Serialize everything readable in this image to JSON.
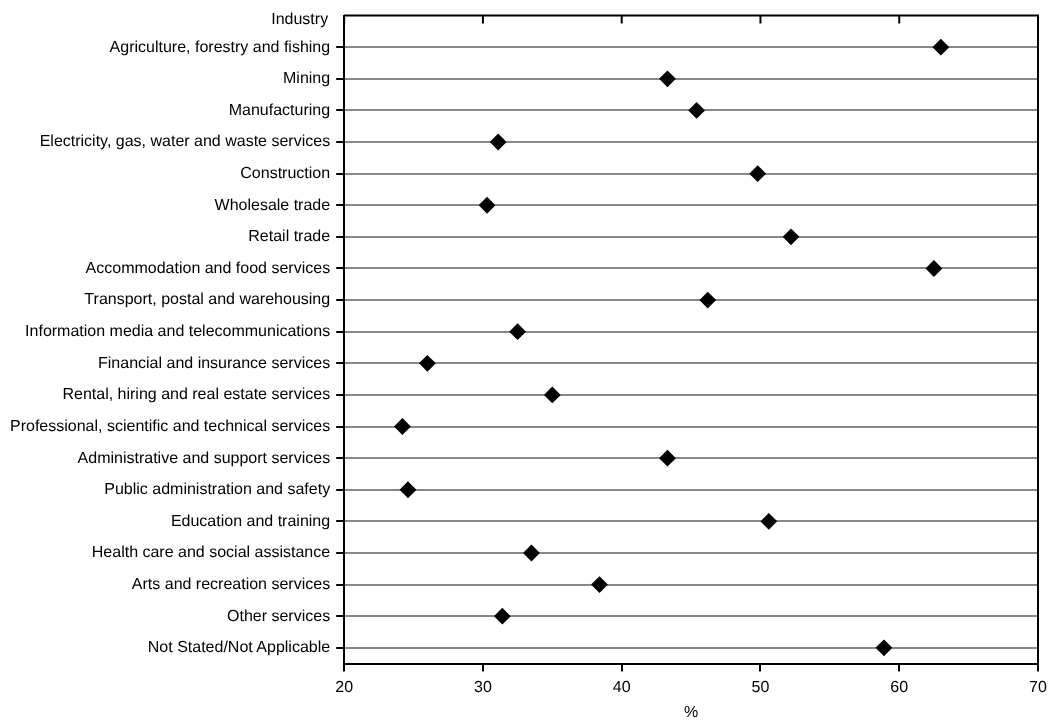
{
  "chart_data": {
    "type": "scatter",
    "orientation": "horizontal",
    "xlabel": "%",
    "ylabel": "Industry",
    "categories": [
      "Agriculture, forestry and fishing",
      "Mining",
      "Manufacturing",
      "Electricity, gas, water and waste services",
      "Construction",
      "Wholesale trade",
      "Retail trade",
      "Accommodation and food services",
      "Transport, postal and warehousing",
      "Information media and telecommunications",
      "Financial and insurance services",
      "Rental, hiring and real estate services",
      "Professional, scientific and technical services",
      "Administrative and support services",
      "Public administration and safety",
      "Education and training",
      "Health care and social assistance",
      "Arts and recreation services",
      "Other services",
      "Not Stated/Not Applicable"
    ],
    "values": [
      63.0,
      43.3,
      45.4,
      31.1,
      49.8,
      30.3,
      52.2,
      62.5,
      46.2,
      32.5,
      26.0,
      35.0,
      24.2,
      43.3,
      24.6,
      50.6,
      33.5,
      38.4,
      31.4,
      58.9
    ],
    "color": "#000000",
    "marker": "diamond",
    "grid": "y",
    "legend": false,
    "xlim": [
      20,
      70
    ],
    "xticks": [
      20,
      30,
      40,
      50,
      60,
      70
    ]
  }
}
